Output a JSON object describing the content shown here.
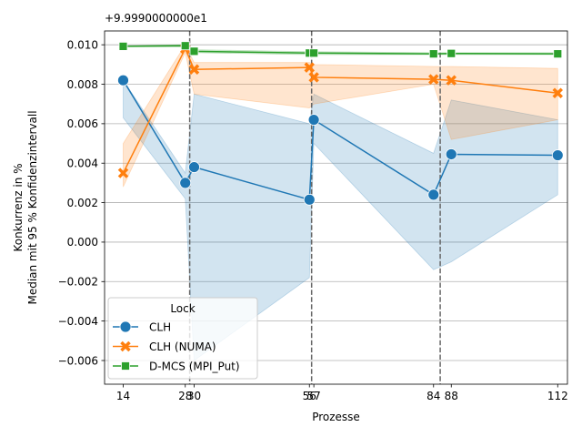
{
  "chart_data": {
    "type": "line",
    "offset_label": "+9.9990000000e1",
    "xlabel": "Prozesse",
    "ylabel_lines": [
      "Konkurrenz in %",
      "Median mit 95 % Konfidenzintervall"
    ],
    "x_ticks": [
      14,
      28,
      30,
      56,
      57,
      84,
      88,
      112
    ],
    "x_tick_labels": [
      "14",
      "28",
      "30",
      "56",
      "57",
      "84",
      "88",
      "112"
    ],
    "y_ticks": [
      -0.006,
      -0.004,
      -0.002,
      0.0,
      0.002,
      0.004,
      0.006,
      0.008,
      0.01
    ],
    "y_tick_labels": [
      "−0.006",
      "−0.004",
      "−0.002",
      "0.000",
      "0.002",
      "0.004",
      "0.006",
      "0.008",
      "0.010"
    ],
    "xlim": [
      9.8,
      114.2
    ],
    "ylim": [
      -0.0072,
      0.0107
    ],
    "grid": "horizontal",
    "vlines": [
      29,
      56.5,
      85.5
    ],
    "legend": {
      "title": "Lock",
      "placement": "lower-left"
    },
    "series": [
      {
        "name": "CLH",
        "color": "#1f77b4",
        "marker": "circle",
        "x": [
          14,
          28,
          30,
          56,
          57,
          84,
          88,
          112
        ],
        "y": [
          0.0082,
          0.003,
          0.0038,
          0.00215,
          0.0062,
          0.0024,
          0.00445,
          0.0044
        ],
        "ci_lower": [
          0.0063,
          0.0022,
          -0.006,
          -0.0018,
          0.005,
          -0.0014,
          -0.001,
          0.0024
        ],
        "ci_upper": [
          0.0082,
          0.0035,
          0.0075,
          0.006,
          0.0075,
          0.0045,
          0.0072,
          0.0062
        ]
      },
      {
        "name": "CLH (NUMA)",
        "color": "#ff7f0e",
        "marker": "x",
        "x": [
          14,
          28,
          30,
          56,
          57,
          84,
          88,
          112
        ],
        "y": [
          0.0035,
          0.0098,
          0.00875,
          0.00885,
          0.00835,
          0.00825,
          0.0082,
          0.00755
        ],
        "ci_lower": [
          0.0028,
          0.0096,
          0.0075,
          0.0068,
          0.007,
          0.008,
          0.0052,
          0.0062
        ],
        "ci_upper": [
          0.005,
          0.01,
          0.0091,
          0.0091,
          0.009,
          0.0089,
          0.0089,
          0.0088
        ]
      },
      {
        "name": "D-MCS (MPI_Put)",
        "color": "#2ca02c",
        "marker": "square",
        "x": [
          14,
          28,
          30,
          56,
          57,
          84,
          88,
          112
        ],
        "y": [
          0.00992,
          0.00995,
          0.00967,
          0.00958,
          0.00958,
          0.00954,
          0.00956,
          0.00954
        ],
        "ci_lower": [
          0.0099,
          0.0099,
          0.0096,
          0.0095,
          0.0095,
          0.0095,
          0.0095,
          0.0095
        ],
        "ci_upper": [
          0.00995,
          0.01,
          0.00975,
          0.00965,
          0.00965,
          0.0096,
          0.0096,
          0.0096
        ]
      }
    ]
  }
}
